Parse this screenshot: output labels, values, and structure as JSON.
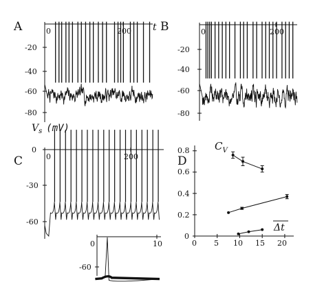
{
  "panels": {
    "A": {
      "letter": "A",
      "x_ticks": [
        "0",
        "200"
      ],
      "x_axis_symbol": "t",
      "y_ticks": [
        "-20",
        "-40",
        "-60",
        "-80"
      ],
      "y_axis_label": "V",
      "y_axis_label_sub": "s",
      "y_axis_unit": "(mV)"
    },
    "B": {
      "letter": "B",
      "x_ticks": [
        "0",
        "200"
      ],
      "y_ticks": [
        "-20",
        "-40",
        "-60",
        "-80"
      ]
    },
    "C": {
      "letter": "C",
      "x_ticks": [
        "0",
        "200"
      ],
      "y_ticks": [
        "0",
        "-30",
        "-60"
      ],
      "inset": {
        "x_ticks": [
          "0",
          "10"
        ],
        "y_ticks": [
          "-60"
        ]
      }
    },
    "D": {
      "letter": "D",
      "y_axis_symbol": "C",
      "y_axis_symbol_sub": "V",
      "x_axis_symbol": "Δt",
      "x_ticks": [
        "0",
        "5",
        "10",
        "15",
        "20"
      ],
      "y_ticks": [
        "0.8",
        "0.6",
        "0.4",
        "0.2",
        "0"
      ]
    }
  },
  "chart_data": [
    {
      "type": "line",
      "panel": "A",
      "x_axis": {
        "label": "t",
        "ticks": [
          0,
          200
        ],
        "range": [
          0,
          280
        ]
      },
      "y_axis": {
        "label": "Vs (mV)",
        "ticks": [
          -20,
          -40,
          -60,
          -80
        ],
        "range": [
          -90,
          0
        ]
      },
      "series": [
        {
          "resting_level": -65,
          "noise_band": [
            -80,
            -53
          ],
          "spike_times": [
            28,
            37,
            44,
            55,
            63,
            72,
            86,
            95,
            106,
            117,
            126,
            139,
            150,
            160,
            181,
            190,
            197,
            204,
            222,
            231,
            240,
            256,
            272
          ]
        }
      ]
    },
    {
      "type": "line",
      "panel": "B",
      "x_axis": {
        "ticks": [
          0,
          200
        ],
        "range": [
          0,
          270
        ]
      },
      "y_axis": {
        "ticks": [
          -20,
          -40,
          -60,
          -80
        ],
        "range": [
          -90,
          0
        ]
      },
      "series": [
        {
          "resting_level": -65,
          "noise_band": [
            -85,
            -50
          ],
          "spike_times": [
            18,
            23,
            28,
            33,
            43,
            53,
            63,
            73,
            83,
            98,
            113,
            122,
            132,
            148,
            158,
            173,
            183,
            193,
            203,
            213,
            228,
            238,
            248,
            258
          ]
        }
      ]
    },
    {
      "type": "line",
      "panel": "C",
      "x_axis": {
        "ticks": [
          0,
          200
        ],
        "range": [
          0,
          240
        ]
      },
      "y_axis": {
        "ticks": [
          0,
          -30,
          -60
        ],
        "range": [
          -72,
          0
        ]
      },
      "series": [
        {
          "reset_level": -55,
          "threshold": -45,
          "spike_times": [
            20,
            31,
            42,
            53,
            64,
            75,
            86,
            97,
            108,
            119,
            130,
            141,
            152,
            163,
            174,
            185,
            196,
            207,
            218,
            229
          ]
        }
      ]
    },
    {
      "type": "line",
      "panel": "C-inset",
      "x_axis": {
        "ticks": [
          0,
          10
        ],
        "range": [
          -1,
          12
        ]
      },
      "y_axis": {
        "ticks": [
          -60
        ],
        "range": [
          -66,
          8
        ]
      }
    },
    {
      "type": "scatter",
      "panel": "D",
      "x_axis": {
        "label": "Δt",
        "ticks": [
          0,
          5,
          10,
          15,
          20
        ],
        "range": [
          0,
          22
        ]
      },
      "y_axis": {
        "label": "CV",
        "ticks": [
          0.8,
          0.6,
          0.4,
          0.2,
          0
        ],
        "range": [
          0,
          0.85
        ]
      },
      "series": [
        {
          "x": [
            8.5,
            10.7,
            15.0
          ],
          "y": [
            0.76,
            0.7,
            0.63
          ],
          "err": [
            0.03,
            0.04,
            0.03
          ]
        },
        {
          "x": [
            7.5,
            10.5,
            20.5
          ],
          "y": [
            0.22,
            0.26,
            0.37
          ],
          "err": [
            0.0,
            0.01,
            0.02
          ]
        },
        {
          "x": [
            9.7,
            12.0,
            15.0
          ],
          "y": [
            0.02,
            0.04,
            0.06
          ],
          "err": [
            0.0,
            0.0,
            0.0
          ]
        }
      ]
    }
  ]
}
